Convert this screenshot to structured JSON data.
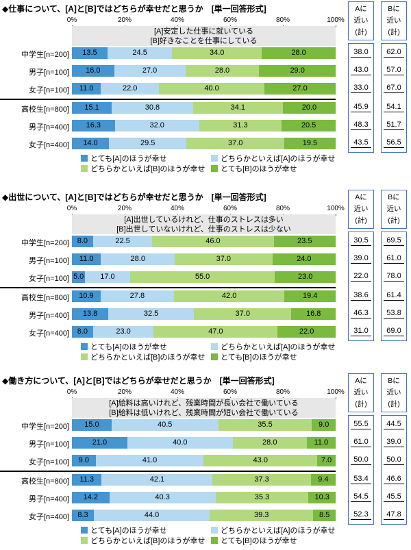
{
  "colors": {
    "seg1": "#4495D1",
    "seg2": "#B4D9F0",
    "seg3": "#B3D97E",
    "seg4": "#7ABA3F",
    "box_border": "#4472C4",
    "statement_bg": "#E7E7E7",
    "separator": "#000000"
  },
  "axis_ticks": [
    "0%",
    "20%",
    "40%",
    "60%",
    "80%",
    "100%"
  ],
  "summary_header_a_lines": [
    "Aに",
    "近い",
    "(計)"
  ],
  "summary_header_b_lines": [
    "Bに",
    "近い",
    "(計)"
  ],
  "legend_items": [
    "とても[A]のほうが幸せ",
    "どちらかといえば[A]のほうが幸せ",
    "どちらかといえば[B]のほうが幸せ",
    "とても[B]のほうが幸せ"
  ],
  "chart_data": [
    {
      "type": "bar",
      "stacked": true,
      "orientation": "horizontal",
      "xlim": [
        0,
        100
      ],
      "legend_position": "bottom",
      "title": "◆仕事について、[A]と[B]ではどちらが幸せだと思うか　[単一回答形式]",
      "statement_a": "[A]安定した仕事に就いている",
      "statement_b": "[B]好きなことを仕事にしている",
      "series_labels": [
        "とても[A]のほうが幸せ",
        "どちらかといえば[A]のほうが幸せ",
        "どちらかといえば[B]のほうが幸せ",
        "とても[B]のほうが幸せ"
      ],
      "rows": [
        {
          "label": "中学生[n=200]",
          "values": [
            13.5,
            24.5,
            34.0,
            28.0
          ],
          "a_total": 38.0,
          "b_total": 62.0
        },
        {
          "label": "男子[n=100]",
          "values": [
            16.0,
            27.0,
            28.0,
            29.0
          ],
          "a_total": 43.0,
          "b_total": 57.0
        },
        {
          "label": "女子[n=100]",
          "values": [
            11.0,
            22.0,
            40.0,
            27.0
          ],
          "a_total": 33.0,
          "b_total": 67.0
        },
        {
          "label": "高校生[n=800]",
          "values": [
            15.1,
            30.8,
            34.1,
            20.0
          ],
          "a_total": 45.9,
          "b_total": 54.1,
          "separator_before": true
        },
        {
          "label": "男子[n=400]",
          "values": [
            16.3,
            32.0,
            31.3,
            20.5
          ],
          "a_total": 48.3,
          "b_total": 51.7
        },
        {
          "label": "女子[n=400]",
          "values": [
            14.0,
            29.5,
            37.0,
            19.5
          ],
          "a_total": 43.5,
          "b_total": 56.5
        }
      ]
    },
    {
      "type": "bar",
      "stacked": true,
      "orientation": "horizontal",
      "xlim": [
        0,
        100
      ],
      "legend_position": "bottom",
      "title": "◆出世について、[A]と[B]ではどちらが幸せだと思うか　[単一回答形式]",
      "statement_a": "[A]出世しているけれど、仕事のストレスは多い",
      "statement_b": "[B]出世していないけれど、仕事のストレスは少ない",
      "series_labels": [
        "とても[A]のほうが幸せ",
        "どちらかといえば[A]のほうが幸せ",
        "どちらかといえば[B]のほうが幸せ",
        "とても[B]のほうが幸せ"
      ],
      "rows": [
        {
          "label": "中学生[n=200]",
          "values": [
            8.0,
            22.5,
            46.0,
            23.5
          ],
          "a_total": 30.5,
          "b_total": 69.5
        },
        {
          "label": "男子[n=100]",
          "values": [
            11.0,
            28.0,
            37.0,
            24.0
          ],
          "a_total": 39.0,
          "b_total": 61.0
        },
        {
          "label": "女子[n=100]",
          "values": [
            5.0,
            17.0,
            55.0,
            23.0
          ],
          "a_total": 22.0,
          "b_total": 78.0
        },
        {
          "label": "高校生[n=800]",
          "values": [
            10.9,
            27.8,
            42.0,
            19.4
          ],
          "a_total": 38.6,
          "b_total": 61.4,
          "separator_before": true
        },
        {
          "label": "男子[n=400]",
          "values": [
            13.8,
            32.5,
            37.0,
            16.8
          ],
          "a_total": 46.3,
          "b_total": 53.8
        },
        {
          "label": "女子[n=400]",
          "values": [
            8.0,
            23.0,
            47.0,
            22.0
          ],
          "a_total": 31.0,
          "b_total": 69.0
        }
      ]
    },
    {
      "type": "bar",
      "stacked": true,
      "orientation": "horizontal",
      "xlim": [
        0,
        100
      ],
      "legend_position": "bottom",
      "title": "◆働き方について、[A]と[B]ではどちらが幸せだと思うか　[単一回答形式]",
      "statement_a": "[A]給料は高いけれど、残業時間が長い会社で働いている",
      "statement_b": "[B]給料は低いけれど、残業時間が短い会社で働いている",
      "series_labels": [
        "とても[A]のほうが幸せ",
        "どちらかといえば[A]のほうが幸せ",
        "どちらかといえば[B]のほうが幸せ",
        "とても[B]のほうが幸せ"
      ],
      "rows": [
        {
          "label": "中学生[n=200]",
          "values": [
            15.0,
            40.5,
            35.5,
            9.0
          ],
          "a_total": 55.5,
          "b_total": 44.5
        },
        {
          "label": "男子[n=100]",
          "values": [
            21.0,
            40.0,
            28.0,
            11.0
          ],
          "a_total": 61.0,
          "b_total": 39.0
        },
        {
          "label": "女子[n=100]",
          "values": [
            9.0,
            41.0,
            43.0,
            7.0
          ],
          "a_total": 50.0,
          "b_total": 50.0
        },
        {
          "label": "高校生[n=800]",
          "values": [
            11.3,
            42.1,
            37.3,
            9.4
          ],
          "a_total": 53.4,
          "b_total": 46.6,
          "separator_before": true
        },
        {
          "label": "男子[n=400]",
          "values": [
            14.2,
            40.3,
            35.3,
            10.3
          ],
          "a_total": 54.5,
          "b_total": 45.5
        },
        {
          "label": "女子[n=400]",
          "values": [
            8.3,
            44.0,
            39.3,
            8.5
          ],
          "a_total": 52.3,
          "b_total": 47.8
        }
      ]
    }
  ]
}
